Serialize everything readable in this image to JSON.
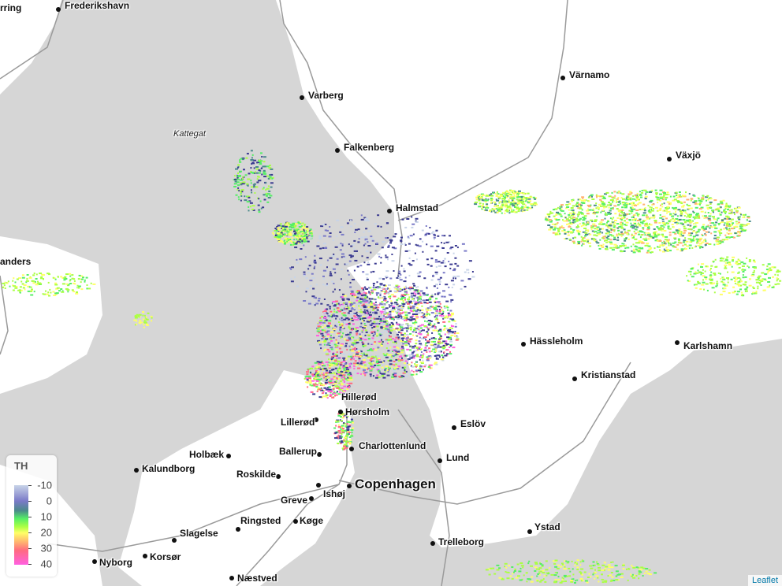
{
  "map": {
    "sea_label": "Kattegat",
    "cities": [
      {
        "name": "rring"
      },
      {
        "name": "Frederikshavn"
      },
      {
        "name": "Varberg"
      },
      {
        "name": "Falkenberg"
      },
      {
        "name": "Halmstad"
      },
      {
        "name": "Värnamo"
      },
      {
        "name": "Växjö"
      },
      {
        "name": "anders"
      },
      {
        "name": "Hässleholm"
      },
      {
        "name": "Karlshamn"
      },
      {
        "name": "Kristianstad"
      },
      {
        "name": "Hillerød"
      },
      {
        "name": "Hørsholm"
      },
      {
        "name": "Lillerød"
      },
      {
        "name": "Eslöv"
      },
      {
        "name": "Charlottenlund"
      },
      {
        "name": "Ballerup"
      },
      {
        "name": "Lund"
      },
      {
        "name": "Holbæk"
      },
      {
        "name": "Kalundborg"
      },
      {
        "name": "Roskilde"
      },
      {
        "name": "Copenhagen"
      },
      {
        "name": "Greve"
      },
      {
        "name": "Ishøj"
      },
      {
        "name": "Ringsted"
      },
      {
        "name": "Køge"
      },
      {
        "name": "Slagelse"
      },
      {
        "name": "Ystad"
      },
      {
        "name": "Trelleborg"
      },
      {
        "name": "Nyborg"
      },
      {
        "name": "Korsør"
      },
      {
        "name": "Næstved"
      }
    ],
    "colors": {
      "sea": "#d6d6d6",
      "land": "#ffffff",
      "road": "#9a9a9a"
    }
  },
  "legend": {
    "title": "TH",
    "ticks": [
      "-10",
      "0",
      "10",
      "20",
      "30",
      "40"
    ],
    "colors": [
      "#c8d4e8",
      "#7a7ac8",
      "#4a8a8a",
      "#55ee66",
      "#ffff66",
      "#ff6a80",
      "#ff60e0"
    ]
  },
  "attribution": "Leaflet"
}
